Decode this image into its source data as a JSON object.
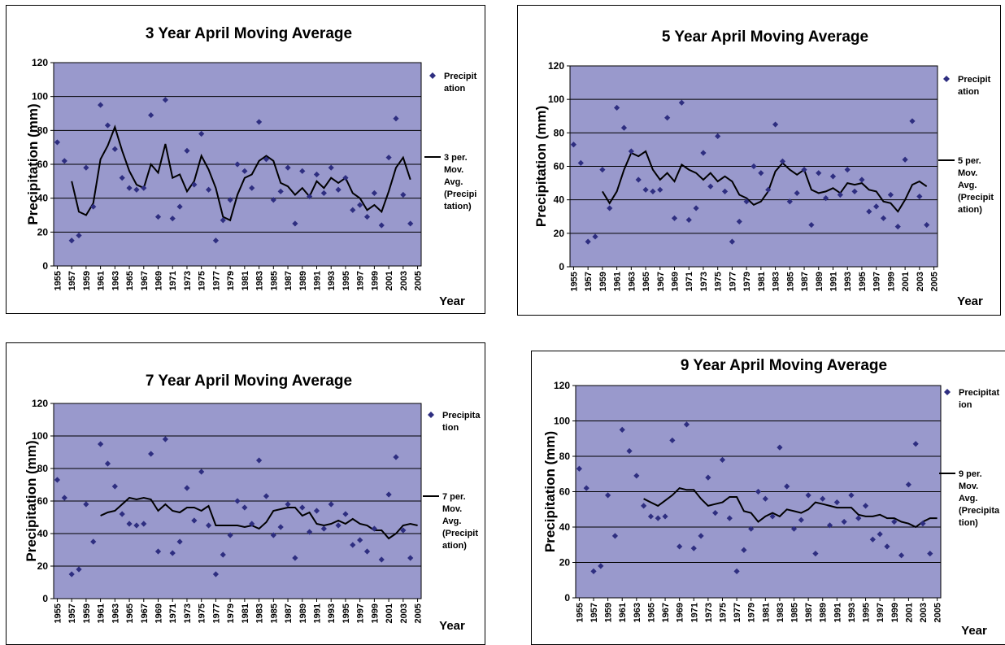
{
  "colors": {
    "plot_background": "#9999cc",
    "marker": "#2e2e80",
    "line": "#000000",
    "grid": "#000000"
  },
  "chart_data": [
    {
      "type": "scatter",
      "title": "3 Year April Moving Average",
      "xlabel": "Year",
      "ylabel": "Precipitation (mm)",
      "ylim": [
        0,
        120
      ],
      "yticks": [
        "0",
        "20",
        "40",
        "60",
        "80",
        "100",
        "120"
      ],
      "xticks": [
        "1955",
        "1957",
        "1959",
        "1961",
        "1963",
        "1965",
        "1967",
        "1969",
        "1971",
        "1973",
        "1975",
        "1977",
        "1979",
        "1981",
        "1983",
        "1985",
        "1987",
        "1989",
        "1991",
        "1993",
        "1995",
        "1997",
        "1999",
        "2001",
        "2003",
        "2005"
      ],
      "grid": "horizontal",
      "legend_position": "right",
      "legend": [
        "Precipit\nation",
        "3 per.\nMov.\nAvg.\n(Precipi\ntation)"
      ],
      "x": [
        1955,
        1956,
        1957,
        1958,
        1959,
        1960,
        1961,
        1962,
        1963,
        1964,
        1965,
        1966,
        1967,
        1968,
        1969,
        1970,
        1971,
        1972,
        1973,
        1974,
        1975,
        1976,
        1977,
        1978,
        1979,
        1980,
        1981,
        1982,
        1983,
        1984,
        1985,
        1986,
        1987,
        1988,
        1989,
        1990,
        1991,
        1992,
        1993,
        1994,
        1995,
        1996,
        1997,
        1998,
        1999,
        2000,
        2001,
        2002,
        2003,
        2004,
        2005
      ],
      "series": [
        {
          "name": "Precipitation",
          "type": "scatter",
          "values": [
            73,
            62,
            15,
            18,
            58,
            35,
            95,
            83,
            69,
            52,
            46,
            45,
            46,
            89,
            29,
            98,
            28,
            35,
            68,
            48,
            78,
            45,
            15,
            27,
            39,
            60,
            56,
            46,
            85,
            63,
            39,
            44,
            58,
            25,
            56,
            41,
            54,
            43,
            58,
            45,
            52,
            33,
            36,
            29,
            43,
            24,
            64,
            87,
            42,
            25,
            null
          ]
        },
        {
          "name": "3 per. Mov. Avg. (Precipitation)",
          "type": "line",
          "values": [
            null,
            null,
            50,
            32,
            30,
            37,
            63,
            71,
            82,
            68,
            56,
            48,
            46,
            60,
            55,
            72,
            52,
            54,
            44,
            50,
            65,
            57,
            46,
            29,
            27,
            42,
            52,
            54,
            62,
            65,
            62,
            49,
            47,
            42,
            46,
            41,
            50,
            46,
            52,
            49,
            52,
            43,
            40,
            33,
            36,
            32,
            44,
            58,
            64,
            51,
            null
          ]
        }
      ]
    },
    {
      "type": "scatter",
      "title": "5 Year April Moving Average",
      "xlabel": "Year",
      "ylabel": "Precipitation (mm)",
      "ylim": [
        0,
        120
      ],
      "yticks": [
        "0",
        "20",
        "40",
        "60",
        "80",
        "100",
        "120"
      ],
      "xticks": [
        "1955",
        "1957",
        "1959",
        "1961",
        "1963",
        "1965",
        "1967",
        "1969",
        "1971",
        "1973",
        "1975",
        "1977",
        "1979",
        "1981",
        "1983",
        "1985",
        "1987",
        "1989",
        "1991",
        "1993",
        "1995",
        "1997",
        "1999",
        "2001",
        "2003",
        "2005"
      ],
      "grid": "horizontal",
      "legend_position": "right",
      "legend": [
        "Precipit\nation",
        "5 per.\nMov.\nAvg.\n(Precipit\nation)"
      ],
      "x": [
        1955,
        1956,
        1957,
        1958,
        1959,
        1960,
        1961,
        1962,
        1963,
        1964,
        1965,
        1966,
        1967,
        1968,
        1969,
        1970,
        1971,
        1972,
        1973,
        1974,
        1975,
        1976,
        1977,
        1978,
        1979,
        1980,
        1981,
        1982,
        1983,
        1984,
        1985,
        1986,
        1987,
        1988,
        1989,
        1990,
        1991,
        1992,
        1993,
        1994,
        1995,
        1996,
        1997,
        1998,
        1999,
        2000,
        2001,
        2002,
        2003,
        2004,
        2005
      ],
      "series": [
        {
          "name": "Precipitation",
          "type": "scatter",
          "values": [
            73,
            62,
            15,
            18,
            58,
            35,
            95,
            83,
            69,
            52,
            46,
            45,
            46,
            89,
            29,
            98,
            28,
            35,
            68,
            48,
            78,
            45,
            15,
            27,
            39,
            60,
            56,
            46,
            85,
            63,
            39,
            44,
            58,
            25,
            56,
            41,
            54,
            43,
            58,
            45,
            52,
            33,
            36,
            29,
            43,
            24,
            64,
            87,
            42,
            25,
            null
          ]
        },
        {
          "name": "5 per. Mov. Avg. (Precipitation)",
          "type": "line",
          "values": [
            null,
            null,
            null,
            null,
            45,
            38,
            45,
            58,
            68,
            66,
            69,
            58,
            52,
            56,
            51,
            61,
            58,
            56,
            52,
            56,
            51,
            54,
            51,
            43,
            41,
            37,
            39,
            45,
            57,
            62,
            58,
            55,
            58,
            46,
            44,
            45,
            47,
            44,
            50,
            49,
            50,
            46,
            45,
            39,
            38,
            33,
            40,
            49,
            51,
            48,
            null
          ]
        }
      ]
    },
    {
      "type": "scatter",
      "title": "7 Year April Moving Average",
      "xlabel": "Year",
      "ylabel": "Precipitation (mm)",
      "ylim": [
        0,
        120
      ],
      "yticks": [
        "0",
        "20",
        "40",
        "60",
        "80",
        "100",
        "120"
      ],
      "xticks": [
        "1955",
        "1957",
        "1959",
        "1961",
        "1963",
        "1965",
        "1967",
        "1969",
        "1971",
        "1973",
        "1975",
        "1977",
        "1979",
        "1981",
        "1983",
        "1985",
        "1987",
        "1989",
        "1991",
        "1993",
        "1995",
        "1997",
        "1999",
        "2001",
        "2003",
        "2005"
      ],
      "grid": "horizontal",
      "legend_position": "right",
      "legend": [
        "Precipita\ntion",
        "7 per.\nMov.\nAvg.\n(Precipit\nation)"
      ],
      "x": [
        1955,
        1956,
        1957,
        1958,
        1959,
        1960,
        1961,
        1962,
        1963,
        1964,
        1965,
        1966,
        1967,
        1968,
        1969,
        1970,
        1971,
        1972,
        1973,
        1974,
        1975,
        1976,
        1977,
        1978,
        1979,
        1980,
        1981,
        1982,
        1983,
        1984,
        1985,
        1986,
        1987,
        1988,
        1989,
        1990,
        1991,
        1992,
        1993,
        1994,
        1995,
        1996,
        1997,
        1998,
        1999,
        2000,
        2001,
        2002,
        2003,
        2004,
        2005
      ],
      "series": [
        {
          "name": "Precipitation",
          "type": "scatter",
          "values": [
            73,
            62,
            15,
            18,
            58,
            35,
            95,
            83,
            69,
            52,
            46,
            45,
            46,
            89,
            29,
            98,
            28,
            35,
            68,
            48,
            78,
            45,
            15,
            27,
            39,
            60,
            56,
            46,
            85,
            63,
            39,
            44,
            58,
            25,
            56,
            41,
            54,
            43,
            58,
            45,
            52,
            33,
            36,
            29,
            43,
            24,
            64,
            87,
            42,
            25,
            null
          ]
        },
        {
          "name": "7 per. Mov. Avg. (Precipitation)",
          "type": "line",
          "values": [
            null,
            null,
            null,
            null,
            null,
            null,
            51,
            53,
            54,
            58,
            62,
            61,
            62,
            61,
            54,
            58,
            54,
            53,
            56,
            56,
            54,
            57,
            45,
            45,
            45,
            45,
            44,
            45,
            43,
            47,
            54,
            55,
            56,
            56,
            51,
            53,
            46,
            45,
            46,
            48,
            46,
            49,
            46,
            45,
            42,
            42,
            37,
            40,
            45,
            46,
            45
          ]
        }
      ]
    },
    {
      "type": "scatter",
      "title": "9 Year April Moving Average",
      "xlabel": "Year",
      "ylabel": "Precipitation (mm)",
      "ylim": [
        0,
        120
      ],
      "yticks": [
        "0",
        "20",
        "40",
        "60",
        "80",
        "100",
        "120"
      ],
      "xticks": [
        "1955",
        "1957",
        "1959",
        "1961",
        "1963",
        "1965",
        "1967",
        "1969",
        "1971",
        "1973",
        "1975",
        "1977",
        "1979",
        "1981",
        "1983",
        "1985",
        "1987",
        "1989",
        "1991",
        "1993",
        "1995",
        "1997",
        "1999",
        "2001",
        "2003",
        "2005"
      ],
      "grid": "horizontal",
      "legend_position": "right",
      "legend": [
        "Precipitat\nion",
        "9 per.\nMov.\nAvg.\n(Precipita\ntion)"
      ],
      "x": [
        1955,
        1956,
        1957,
        1958,
        1959,
        1960,
        1961,
        1962,
        1963,
        1964,
        1965,
        1966,
        1967,
        1968,
        1969,
        1970,
        1971,
        1972,
        1973,
        1974,
        1975,
        1976,
        1977,
        1978,
        1979,
        1980,
        1981,
        1982,
        1983,
        1984,
        1985,
        1986,
        1987,
        1988,
        1989,
        1990,
        1991,
        1992,
        1993,
        1994,
        1995,
        1996,
        1997,
        1998,
        1999,
        2000,
        2001,
        2002,
        2003,
        2004,
        2005
      ],
      "series": [
        {
          "name": "Precipitation",
          "type": "scatter",
          "values": [
            73,
            62,
            15,
            18,
            58,
            35,
            95,
            83,
            69,
            52,
            46,
            45,
            46,
            89,
            29,
            98,
            28,
            35,
            68,
            48,
            78,
            45,
            15,
            27,
            39,
            60,
            56,
            46,
            85,
            63,
            39,
            44,
            58,
            25,
            56,
            41,
            54,
            43,
            58,
            45,
            52,
            33,
            36,
            29,
            43,
            24,
            64,
            87,
            42,
            25,
            null
          ]
        },
        {
          "name": "9 per. Mov. Avg. (Precipitation)",
          "type": "line",
          "values": [
            null,
            null,
            null,
            null,
            null,
            null,
            null,
            null,
            null,
            56,
            54,
            52,
            55,
            58,
            62,
            61,
            61,
            56,
            52,
            53,
            54,
            57,
            57,
            49,
            48,
            43,
            46,
            48,
            46,
            50,
            49,
            48,
            50,
            54,
            53,
            52,
            51,
            51,
            51,
            47,
            46,
            46,
            47,
            45,
            45,
            43,
            42,
            40,
            43,
            45,
            45
          ]
        }
      ]
    }
  ]
}
